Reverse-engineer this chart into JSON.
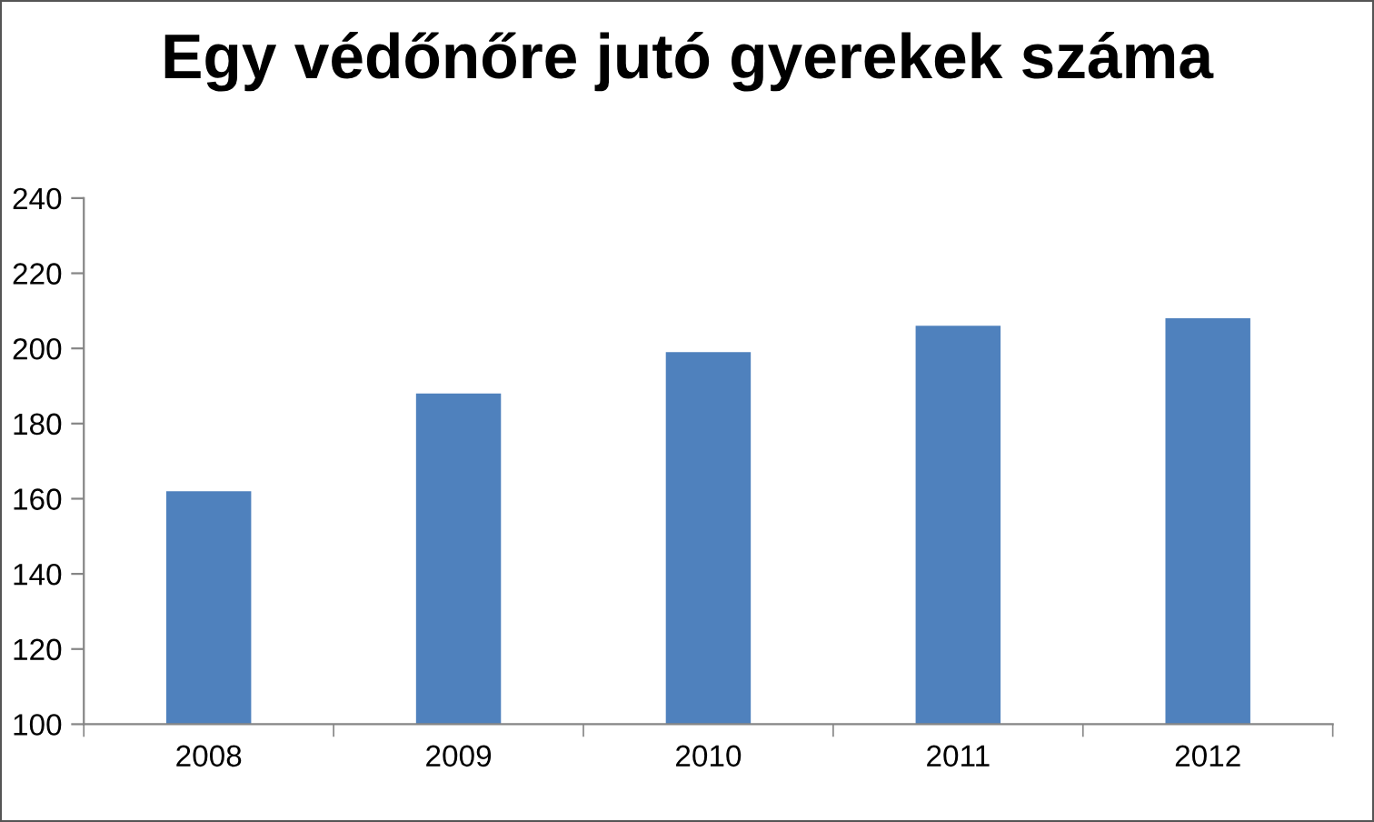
{
  "chart_data": {
    "type": "bar",
    "title": "Egy védőnőre jutó gyerekek száma",
    "categories": [
      "2008",
      "2009",
      "2010",
      "2011",
      "2012"
    ],
    "values": [
      162,
      188,
      199,
      206,
      208
    ],
    "color": "#4f81bd",
    "ylim": [
      100,
      240
    ],
    "yticks": [
      100,
      120,
      140,
      160,
      180,
      200,
      220,
      240
    ],
    "grid": false,
    "legend": false
  }
}
